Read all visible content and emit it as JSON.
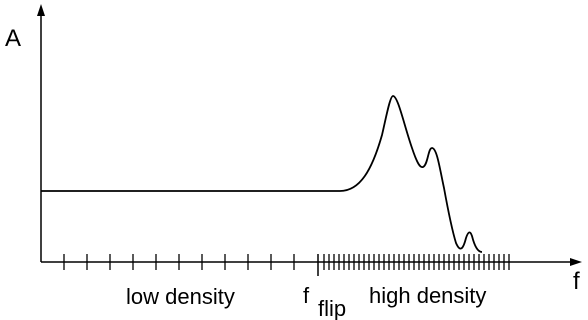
{
  "diagram": {
    "y_axis_label": "A",
    "x_axis_label": "f",
    "low_density_label": "low density",
    "flip_label_main": "f",
    "flip_label_sub": "flip",
    "high_density_label": "high density"
  },
  "colors": {
    "ink": "#000000",
    "background": "#ffffff"
  }
}
